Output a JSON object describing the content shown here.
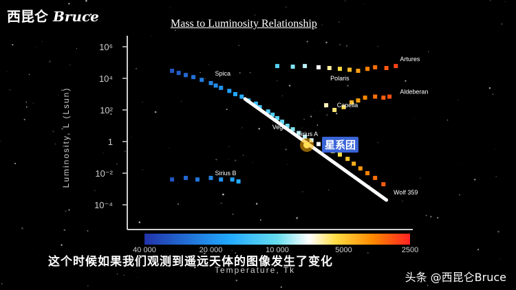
{
  "brand": {
    "cn": "西昆仑",
    "latin": "Bruce"
  },
  "subtitle": "这个时候如果我们观测到遥远天体的图像发生了变化",
  "watermark": "头条 @西昆仑Bruce",
  "callout": "星系团",
  "colors": {
    "text": "#ffffff",
    "axis": "#cfcfcf",
    "callout_bg": "#3a64d8",
    "trend_line": "#ffffff"
  },
  "chart_data": {
    "type": "scatter",
    "title": "Mass to Luminosity Relationship",
    "ylabel": "Luminosity, L (Lsun)",
    "xlabel": "Temperature, Tk",
    "x_scale": "log",
    "x_reversed": true,
    "y_scale": "log",
    "xlim": [
      40000,
      2500
    ],
    "ylim": [
      0.0001,
      1000000
    ],
    "y_ticks": [
      {
        "v": 1000000,
        "label": "10⁶"
      },
      {
        "v": 10000,
        "label": "10⁴"
      },
      {
        "v": 100,
        "label": "10²"
      },
      {
        "v": 1,
        "label": "1"
      },
      {
        "v": 0.01,
        "label": "10⁻²"
      },
      {
        "v": 0.0001,
        "label": "10⁻⁴"
      }
    ],
    "x_ticks": [
      {
        "v": 40000,
        "label": "40 000"
      },
      {
        "v": 20000,
        "label": "20 000"
      },
      {
        "v": 10000,
        "label": "10 000"
      },
      {
        "v": 5000,
        "label": "5000"
      },
      {
        "v": 2500,
        "label": "2500"
      }
    ],
    "star_labels": [
      {
        "name": "Spica",
        "x": 20000,
        "y": 10000
      },
      {
        "name": "Polaris",
        "x": 6000,
        "y": 5000
      },
      {
        "name": "Artures",
        "x": 2900,
        "y": 80000
      },
      {
        "name": "Aldeberan",
        "x": 2900,
        "y": 700
      },
      {
        "name": "Capella",
        "x": 5600,
        "y": 100
      },
      {
        "name": "Vega",
        "x": 11000,
        "y": 4
      },
      {
        "name": "Sirius A",
        "x": 8500,
        "y": 1.5
      },
      {
        "name": "Sirius B",
        "x": 20000,
        "y": 0.005
      },
      {
        "name": "Wolf 359",
        "x": 3100,
        "y": 0.0003
      }
    ],
    "series": [
      {
        "name": "main_sequence",
        "points": [
          [
            30000,
            30000
          ],
          [
            28000,
            22000
          ],
          [
            26000,
            16000
          ],
          [
            24000,
            12000
          ],
          [
            22000,
            8000
          ],
          [
            20000,
            5000
          ],
          [
            19000,
            3500
          ],
          [
            18000,
            2500
          ],
          [
            16500,
            1600
          ],
          [
            15500,
            1000
          ],
          [
            14500,
            700
          ],
          [
            13500,
            400
          ],
          [
            12500,
            250
          ],
          [
            12000,
            150
          ],
          [
            11000,
            80
          ],
          [
            10500,
            50
          ],
          [
            10000,
            30
          ],
          [
            9500,
            18
          ],
          [
            9000,
            10
          ],
          [
            8500,
            6
          ],
          [
            8000,
            3.5
          ],
          [
            7500,
            2
          ],
          [
            7000,
            1.2
          ],
          [
            6500,
            0.7
          ],
          [
            6000,
            0.4
          ],
          [
            5600,
            0.25
          ],
          [
            5200,
            0.15
          ],
          [
            4800,
            0.08
          ],
          [
            4500,
            0.04
          ],
          [
            4200,
            0.02
          ],
          [
            3900,
            0.01
          ],
          [
            3600,
            0.005
          ],
          [
            3300,
            0.002
          ]
        ]
      },
      {
        "name": "giants",
        "points": [
          [
            10000,
            60000
          ],
          [
            8500,
            55000
          ],
          [
            7500,
            60000
          ],
          [
            6500,
            50000
          ],
          [
            5800,
            45000
          ],
          [
            5200,
            40000
          ],
          [
            4700,
            35000
          ],
          [
            4300,
            30000
          ],
          [
            3900,
            40000
          ],
          [
            3600,
            50000
          ],
          [
            3200,
            45000
          ],
          [
            2900,
            60000
          ],
          [
            6000,
            200
          ],
          [
            5500,
            100
          ],
          [
            5000,
            150
          ],
          [
            4600,
            300
          ],
          [
            4300,
            400
          ],
          [
            4000,
            600
          ],
          [
            3600,
            700
          ],
          [
            3300,
            600
          ],
          [
            3100,
            700
          ]
        ]
      },
      {
        "name": "white_dwarfs",
        "points": [
          [
            30000,
            0.004
          ],
          [
            26000,
            0.005
          ],
          [
            23000,
            0.004
          ],
          [
            20000,
            0.005
          ],
          [
            18000,
            0.004
          ],
          [
            16000,
            0.004
          ],
          [
            15000,
            0.003
          ]
        ]
      }
    ],
    "trend_line": [
      [
        14000,
        500
      ],
      [
        3200,
        0.0002
      ]
    ],
    "colorbar": [
      {
        "v": 40000,
        "color": "#2233aa"
      },
      {
        "v": 15000,
        "color": "#22aaff"
      },
      {
        "v": 9000,
        "color": "#66ddee"
      },
      {
        "v": 6500,
        "color": "#ffffff"
      },
      {
        "v": 5200,
        "color": "#ffdd44"
      },
      {
        "v": 4000,
        "color": "#ff8800"
      },
      {
        "v": 2500,
        "color": "#ff2222"
      }
    ],
    "grid": false,
    "legend": "none"
  }
}
